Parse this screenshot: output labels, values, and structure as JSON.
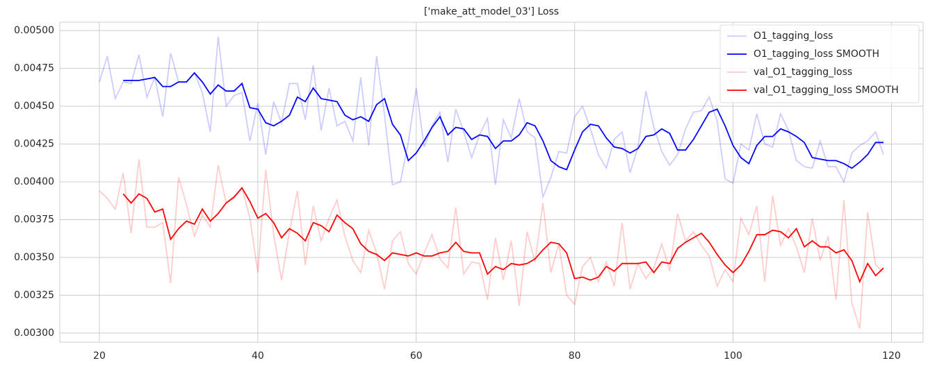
{
  "chart_data": {
    "type": "line",
    "title": "['make_att_model_03'] Loss",
    "x": [
      20,
      21,
      22,
      23,
      24,
      25,
      26,
      27,
      28,
      29,
      30,
      31,
      32,
      33,
      34,
      35,
      36,
      37,
      38,
      39,
      40,
      41,
      42,
      43,
      44,
      45,
      46,
      47,
      48,
      49,
      50,
      51,
      52,
      53,
      54,
      55,
      56,
      57,
      58,
      59,
      60,
      61,
      62,
      63,
      64,
      65,
      66,
      67,
      68,
      69,
      70,
      71,
      72,
      73,
      74,
      75,
      76,
      77,
      78,
      79,
      80,
      81,
      82,
      83,
      84,
      85,
      86,
      87,
      88,
      89,
      90,
      91,
      92,
      93,
      94,
      95,
      96,
      97,
      98,
      99,
      100,
      101,
      102,
      103,
      104,
      105,
      106,
      107,
      108,
      109,
      110,
      111,
      112,
      113,
      114,
      115,
      116,
      117,
      118,
      119
    ],
    "series": [
      {
        "name": "O1_tagging_loss",
        "color": "rgba(0,0,255,0.2)",
        "values": [
          0.00466,
          0.00483,
          0.00455,
          0.00466,
          0.00465,
          0.00484,
          0.00456,
          0.00469,
          0.00443,
          0.00485,
          0.00466,
          0.00466,
          0.00472,
          0.00459,
          0.00433,
          0.00496,
          0.0045,
          0.00457,
          0.00459,
          0.00427,
          0.00452,
          0.00418,
          0.00453,
          0.00439,
          0.00465,
          0.00465,
          0.00441,
          0.00477,
          0.00434,
          0.00462,
          0.00437,
          0.0044,
          0.00427,
          0.00469,
          0.00424,
          0.00483,
          0.00444,
          0.00398,
          0.004,
          0.00426,
          0.00462,
          0.00423,
          0.00437,
          0.00446,
          0.00413,
          0.00448,
          0.00433,
          0.00416,
          0.00431,
          0.00442,
          0.00398,
          0.00441,
          0.00429,
          0.00455,
          0.00433,
          0.00429,
          0.0039,
          0.00403,
          0.0042,
          0.00419,
          0.00443,
          0.0045,
          0.00435,
          0.00418,
          0.00409,
          0.00428,
          0.00433,
          0.00406,
          0.00423,
          0.0046,
          0.00436,
          0.0042,
          0.00411,
          0.00418,
          0.00435,
          0.00446,
          0.00447,
          0.00456,
          0.0044,
          0.00402,
          0.00399,
          0.00425,
          0.00421,
          0.00445,
          0.00425,
          0.00423,
          0.00445,
          0.00434,
          0.00414,
          0.0041,
          0.00409,
          0.00427,
          0.0041,
          0.0041,
          0.004,
          0.00419,
          0.00424,
          0.00427,
          0.00433,
          0.00418
        ]
      },
      {
        "name": "O1_tagging_loss SMOOTH",
        "color": "#0000ff",
        "values": [
          null,
          null,
          null,
          0.00467,
          0.00467,
          0.00467,
          0.00468,
          0.00469,
          0.00463,
          0.00463,
          0.00466,
          0.00466,
          0.00472,
          0.00466,
          0.00458,
          0.00464,
          0.0046,
          0.0046,
          0.00465,
          0.00449,
          0.00448,
          0.00439,
          0.00437,
          0.0044,
          0.00444,
          0.00456,
          0.00453,
          0.00462,
          0.00455,
          0.00454,
          0.00453,
          0.00444,
          0.00441,
          0.00443,
          0.0044,
          0.00451,
          0.00455,
          0.00438,
          0.00431,
          0.00414,
          0.00419,
          0.00427,
          0.00436,
          0.00443,
          0.00431,
          0.00436,
          0.00435,
          0.00428,
          0.00431,
          0.0043,
          0.00422,
          0.00427,
          0.00427,
          0.00431,
          0.00439,
          0.00437,
          0.00427,
          0.00414,
          0.0041,
          0.00408,
          0.00421,
          0.00433,
          0.00438,
          0.00437,
          0.00429,
          0.00423,
          0.00422,
          0.00419,
          0.00422,
          0.0043,
          0.00431,
          0.00435,
          0.00432,
          0.00421,
          0.00421,
          0.00428,
          0.00437,
          0.00446,
          0.00448,
          0.00437,
          0.00424,
          0.00416,
          0.00412,
          0.00424,
          0.0043,
          0.0043,
          0.00435,
          0.00433,
          0.0043,
          0.00426,
          0.00416,
          0.00415,
          0.00414,
          0.00414,
          0.00412,
          0.00409,
          0.00413,
          0.00418,
          0.00426,
          0.00426
        ]
      },
      {
        "name": "val_O1_tagging_loss",
        "color": "rgba(255,0,0,0.2)",
        "values": [
          0.00394,
          0.00389,
          0.00382,
          0.00406,
          0.00366,
          0.00415,
          0.0037,
          0.0037,
          0.00373,
          0.00333,
          0.00403,
          0.00385,
          0.00364,
          0.00378,
          0.0037,
          0.00411,
          0.00386,
          0.00389,
          0.00396,
          0.00376,
          0.0034,
          0.00408,
          0.00365,
          0.00335,
          0.00367,
          0.00394,
          0.00345,
          0.00384,
          0.00361,
          0.00376,
          0.00388,
          0.00364,
          0.00348,
          0.0034,
          0.00368,
          0.00353,
          0.00329,
          0.00361,
          0.00367,
          0.00346,
          0.00339,
          0.00353,
          0.00365,
          0.00349,
          0.00343,
          0.00383,
          0.00339,
          0.00347,
          0.00346,
          0.00322,
          0.00363,
          0.00335,
          0.00361,
          0.00318,
          0.00367,
          0.00347,
          0.00386,
          0.0034,
          0.00359,
          0.00325,
          0.00319,
          0.00344,
          0.0035,
          0.00334,
          0.00347,
          0.00331,
          0.00373,
          0.00329,
          0.00346,
          0.00336,
          0.00343,
          0.00359,
          0.00341,
          0.00379,
          0.00361,
          0.00367,
          0.00358,
          0.00351,
          0.00331,
          0.00342,
          0.00334,
          0.00376,
          0.00365,
          0.00384,
          0.00334,
          0.00391,
          0.00358,
          0.00369,
          0.00357,
          0.0034,
          0.00376,
          0.00348,
          0.00364,
          0.00322,
          0.00388,
          0.0032,
          0.00303,
          0.0038,
          0.00345,
          0.0034
        ]
      },
      {
        "name": "val_O1_tagging_loss SMOOTH",
        "color": "#ff0000",
        "values": [
          null,
          null,
          null,
          0.00392,
          0.00386,
          0.00392,
          0.00389,
          0.0038,
          0.00382,
          0.00362,
          0.00369,
          0.00374,
          0.00372,
          0.00382,
          0.00374,
          0.00379,
          0.00386,
          0.0039,
          0.00396,
          0.00387,
          0.00376,
          0.00379,
          0.00373,
          0.00363,
          0.00369,
          0.00366,
          0.00361,
          0.00373,
          0.00371,
          0.00367,
          0.00378,
          0.00373,
          0.00369,
          0.00359,
          0.00354,
          0.00352,
          0.00348,
          0.00353,
          0.00352,
          0.00351,
          0.00353,
          0.00351,
          0.00351,
          0.00353,
          0.00354,
          0.0036,
          0.00354,
          0.00353,
          0.00353,
          0.00339,
          0.00344,
          0.00342,
          0.00346,
          0.00345,
          0.00346,
          0.00349,
          0.00355,
          0.0036,
          0.00359,
          0.00353,
          0.00336,
          0.00337,
          0.00335,
          0.00337,
          0.00344,
          0.00341,
          0.00346,
          0.00346,
          0.00346,
          0.00347,
          0.0034,
          0.00347,
          0.00346,
          0.00356,
          0.0036,
          0.00363,
          0.00366,
          0.0036,
          0.00352,
          0.00345,
          0.0034,
          0.00345,
          0.00354,
          0.00365,
          0.00365,
          0.00368,
          0.00367,
          0.00363,
          0.00369,
          0.00357,
          0.00361,
          0.00357,
          0.00357,
          0.00353,
          0.00355,
          0.00348,
          0.00334,
          0.00346,
          0.00338,
          0.00343
        ]
      }
    ],
    "xlim": [
      15,
      124
    ],
    "xticks": [
      20,
      40,
      60,
      80,
      100,
      120
    ],
    "ylim": [
      0.00294,
      0.005055
    ],
    "yticks": [
      {
        "value": 0.003,
        "label": "0.00300"
      },
      {
        "value": 0.00325,
        "label": "0.00325"
      },
      {
        "value": 0.0035,
        "label": "0.00350"
      },
      {
        "value": 0.00375,
        "label": "0.00375"
      },
      {
        "value": 0.004,
        "label": "0.00400"
      },
      {
        "value": 0.00425,
        "label": "0.00425"
      },
      {
        "value": 0.0045,
        "label": "0.00450"
      },
      {
        "value": 0.00475,
        "label": "0.00475"
      },
      {
        "value": 0.005,
        "label": "0.00500"
      }
    ],
    "grid": true,
    "legend": "upper right"
  }
}
